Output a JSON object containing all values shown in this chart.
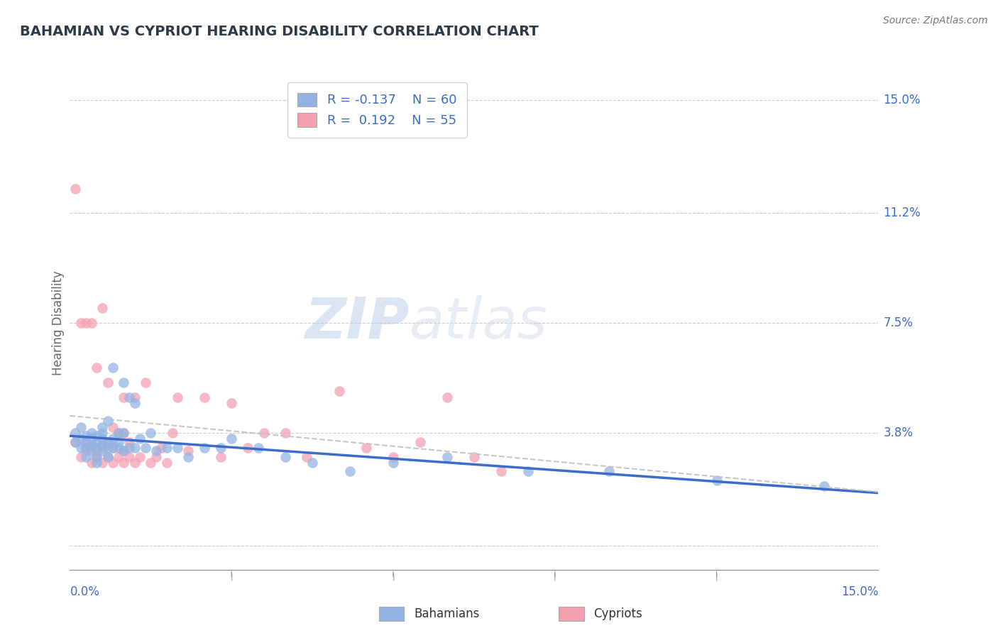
{
  "title": "BAHAMIAN VS CYPRIOT HEARING DISABILITY CORRELATION CHART",
  "source": "Source: ZipAtlas.com",
  "ylabel": "Hearing Disability",
  "xlim": [
    0.0,
    0.15
  ],
  "ylim": [
    -0.008,
    0.158
  ],
  "yticks": [
    0.0,
    0.038,
    0.075,
    0.112,
    0.15
  ],
  "ytick_labels": [
    "",
    "3.8%",
    "7.5%",
    "11.2%",
    "15.0%"
  ],
  "xticks": [
    0.0,
    0.03,
    0.06,
    0.09,
    0.12,
    0.15
  ],
  "R_bahamian": -0.137,
  "N_bahamian": 60,
  "R_cypriot": 0.192,
  "N_cypriot": 55,
  "bahamian_color": "#92b4e3",
  "cypriot_color": "#f4a0b0",
  "bahamian_line_color": "#3b6cc9",
  "cypriot_line_color": "#e06080",
  "grid_color": "#cccccc",
  "title_color": "#2d3a4a",
  "axis_label_color": "#3b6cc9",
  "watermark_zip": "ZIP",
  "watermark_atlas": "atlas",
  "bahamian_x": [
    0.001,
    0.001,
    0.002,
    0.002,
    0.002,
    0.003,
    0.003,
    0.003,
    0.003,
    0.004,
    0.004,
    0.004,
    0.004,
    0.005,
    0.005,
    0.005,
    0.005,
    0.005,
    0.006,
    0.006,
    0.006,
    0.006,
    0.006,
    0.007,
    0.007,
    0.007,
    0.007,
    0.008,
    0.008,
    0.008,
    0.009,
    0.009,
    0.009,
    0.01,
    0.01,
    0.01,
    0.011,
    0.011,
    0.012,
    0.012,
    0.013,
    0.014,
    0.015,
    0.016,
    0.018,
    0.02,
    0.022,
    0.025,
    0.028,
    0.03,
    0.035,
    0.04,
    0.045,
    0.052,
    0.06,
    0.07,
    0.085,
    0.1,
    0.12,
    0.14
  ],
  "bahamian_y": [
    0.038,
    0.035,
    0.036,
    0.033,
    0.04,
    0.035,
    0.037,
    0.033,
    0.03,
    0.036,
    0.034,
    0.038,
    0.032,
    0.035,
    0.037,
    0.033,
    0.03,
    0.028,
    0.036,
    0.034,
    0.038,
    0.032,
    0.04,
    0.035,
    0.033,
    0.042,
    0.03,
    0.06,
    0.036,
    0.033,
    0.038,
    0.035,
    0.033,
    0.055,
    0.038,
    0.032,
    0.05,
    0.033,
    0.048,
    0.033,
    0.036,
    0.033,
    0.038,
    0.032,
    0.033,
    0.033,
    0.03,
    0.033,
    0.033,
    0.036,
    0.033,
    0.03,
    0.028,
    0.025,
    0.028,
    0.03,
    0.025,
    0.025,
    0.022,
    0.02
  ],
  "cypriot_x": [
    0.001,
    0.001,
    0.002,
    0.002,
    0.003,
    0.003,
    0.003,
    0.004,
    0.004,
    0.004,
    0.005,
    0.005,
    0.005,
    0.006,
    0.006,
    0.006,
    0.007,
    0.007,
    0.007,
    0.008,
    0.008,
    0.008,
    0.009,
    0.009,
    0.01,
    0.01,
    0.01,
    0.01,
    0.011,
    0.011,
    0.012,
    0.012,
    0.013,
    0.014,
    0.015,
    0.016,
    0.017,
    0.018,
    0.019,
    0.02,
    0.022,
    0.025,
    0.028,
    0.03,
    0.033,
    0.036,
    0.04,
    0.044,
    0.05,
    0.055,
    0.06,
    0.065,
    0.07,
    0.075,
    0.08
  ],
  "cypriot_y": [
    0.035,
    0.12,
    0.03,
    0.075,
    0.032,
    0.035,
    0.075,
    0.028,
    0.033,
    0.075,
    0.03,
    0.032,
    0.06,
    0.028,
    0.033,
    0.08,
    0.03,
    0.035,
    0.055,
    0.028,
    0.033,
    0.04,
    0.03,
    0.038,
    0.028,
    0.032,
    0.05,
    0.038,
    0.03,
    0.035,
    0.028,
    0.05,
    0.03,
    0.055,
    0.028,
    0.03,
    0.033,
    0.028,
    0.038,
    0.05,
    0.032,
    0.05,
    0.03,
    0.048,
    0.033,
    0.038,
    0.038,
    0.03,
    0.052,
    0.033,
    0.03,
    0.035,
    0.05,
    0.03,
    0.025
  ]
}
